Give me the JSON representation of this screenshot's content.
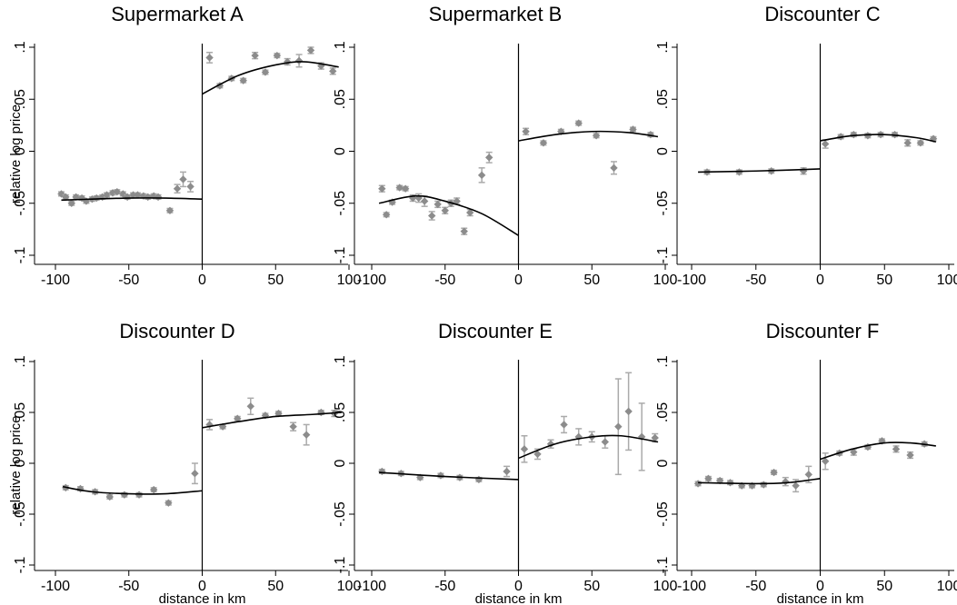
{
  "chart_data": [
    {
      "type": "scatter",
      "title": "Supermarket A",
      "ylabel": "relative log price",
      "xlabel": "",
      "xlim": [
        -100,
        100
      ],
      "ylim": [
        -0.1,
        0.1
      ],
      "xticks": [
        "-100",
        "-50",
        "0",
        "50",
        "100"
      ],
      "yticks": [
        "-.1",
        "-.05",
        "0",
        ".05",
        ".1"
      ],
      "points": [
        {
          "x": -96,
          "y": -0.041,
          "e": 0.002
        },
        {
          "x": -93,
          "y": -0.044,
          "e": 0.002
        },
        {
          "x": -89,
          "y": -0.05,
          "e": 0.002
        },
        {
          "x": -86,
          "y": -0.044,
          "e": 0.002
        },
        {
          "x": -82,
          "y": -0.045,
          "e": 0.002
        },
        {
          "x": -79,
          "y": -0.048,
          "e": 0.002
        },
        {
          "x": -75,
          "y": -0.046,
          "e": 0.002
        },
        {
          "x": -72,
          "y": -0.045,
          "e": 0.002
        },
        {
          "x": -68,
          "y": -0.044,
          "e": 0.002
        },
        {
          "x": -65,
          "y": -0.042,
          "e": 0.002
        },
        {
          "x": -61,
          "y": -0.04,
          "e": 0.002
        },
        {
          "x": -58,
          "y": -0.039,
          "e": 0.002
        },
        {
          "x": -54,
          "y": -0.041,
          "e": 0.002
        },
        {
          "x": -51,
          "y": -0.044,
          "e": 0.002
        },
        {
          "x": -47,
          "y": -0.042,
          "e": 0.002
        },
        {
          "x": -44,
          "y": -0.042,
          "e": 0.002
        },
        {
          "x": -40,
          "y": -0.043,
          "e": 0.002
        },
        {
          "x": -37,
          "y": -0.044,
          "e": 0.002
        },
        {
          "x": -33,
          "y": -0.043,
          "e": 0.002
        },
        {
          "x": -30,
          "y": -0.044,
          "e": 0.002
        },
        {
          "x": -22,
          "y": -0.057,
          "e": 0.002
        },
        {
          "x": -17,
          "y": -0.036,
          "e": 0.004
        },
        {
          "x": -13,
          "y": -0.027,
          "e": 0.007
        },
        {
          "x": -8,
          "y": -0.034,
          "e": 0.005
        },
        {
          "x": 5,
          "y": 0.09,
          "e": 0.005
        },
        {
          "x": 12,
          "y": 0.063,
          "e": 0.002
        },
        {
          "x": 20,
          "y": 0.07,
          "e": 0.002
        },
        {
          "x": 28,
          "y": 0.068,
          "e": 0.002
        },
        {
          "x": 36,
          "y": 0.092,
          "e": 0.003
        },
        {
          "x": 43,
          "y": 0.076,
          "e": 0.002
        },
        {
          "x": 51,
          "y": 0.092,
          "e": 0.002
        },
        {
          "x": 58,
          "y": 0.086,
          "e": 0.003
        },
        {
          "x": 66,
          "y": 0.087,
          "e": 0.006
        },
        {
          "x": 74,
          "y": 0.097,
          "e": 0.003
        },
        {
          "x": 81,
          "y": 0.082,
          "e": 0.003
        },
        {
          "x": 89,
          "y": 0.077,
          "e": 0.003
        }
      ],
      "fit_left": [
        [
          -96,
          -0.047
        ],
        [
          -75,
          -0.046
        ],
        [
          -50,
          -0.045
        ],
        [
          -25,
          -0.045
        ],
        [
          0,
          -0.046
        ]
      ],
      "fit_right": [
        [
          0,
          0.055
        ],
        [
          25,
          0.073
        ],
        [
          50,
          0.083
        ],
        [
          70,
          0.086
        ],
        [
          93,
          0.081
        ]
      ]
    },
    {
      "type": "scatter",
      "title": "Supermarket B",
      "ylabel": "",
      "xlabel": "",
      "xlim": [
        -100,
        100
      ],
      "ylim": [
        -0.1,
        0.1
      ],
      "xticks": [
        "-100",
        "-50",
        "0",
        "50",
        "100"
      ],
      "yticks": [
        "-.1",
        "-.05",
        "0",
        ".05",
        ".1"
      ],
      "points": [
        {
          "x": -93,
          "y": -0.036,
          "e": 0.003
        },
        {
          "x": -90,
          "y": -0.061,
          "e": 0.002
        },
        {
          "x": -86,
          "y": -0.049,
          "e": 0.002
        },
        {
          "x": -81,
          "y": -0.035,
          "e": 0.002
        },
        {
          "x": -77,
          "y": -0.036,
          "e": 0.002
        },
        {
          "x": -72,
          "y": -0.045,
          "e": 0.003
        },
        {
          "x": -68,
          "y": -0.045,
          "e": 0.004
        },
        {
          "x": -64,
          "y": -0.048,
          "e": 0.005
        },
        {
          "x": -59,
          "y": -0.062,
          "e": 0.004
        },
        {
          "x": -55,
          "y": -0.051,
          "e": 0.003
        },
        {
          "x": -50,
          "y": -0.057,
          "e": 0.003
        },
        {
          "x": -46,
          "y": -0.05,
          "e": 0.003
        },
        {
          "x": -42,
          "y": -0.048,
          "e": 0.003
        },
        {
          "x": -37,
          "y": -0.077,
          "e": 0.003
        },
        {
          "x": -33,
          "y": -0.059,
          "e": 0.003
        },
        {
          "x": -25,
          "y": -0.023,
          "e": 0.007
        },
        {
          "x": -20,
          "y": -0.006,
          "e": 0.005
        },
        {
          "x": 5,
          "y": 0.019,
          "e": 0.003
        },
        {
          "x": 17,
          "y": 0.008,
          "e": 0.002
        },
        {
          "x": 29,
          "y": 0.019,
          "e": 0.002
        },
        {
          "x": 41,
          "y": 0.027,
          "e": 0.002
        },
        {
          "x": 53,
          "y": 0.015,
          "e": 0.002
        },
        {
          "x": 65,
          "y": -0.016,
          "e": 0.006
        },
        {
          "x": 78,
          "y": 0.021,
          "e": 0.002
        },
        {
          "x": 90,
          "y": 0.016,
          "e": 0.002
        }
      ],
      "fit_left": [
        [
          -95,
          -0.05
        ],
        [
          -70,
          -0.043
        ],
        [
          -50,
          -0.048
        ],
        [
          -25,
          -0.06
        ],
        [
          0,
          -0.081
        ]
      ],
      "fit_right": [
        [
          0,
          0.01
        ],
        [
          25,
          0.016
        ],
        [
          50,
          0.019
        ],
        [
          75,
          0.018
        ],
        [
          95,
          0.014
        ]
      ]
    },
    {
      "type": "scatter",
      "title": "Discounter C",
      "ylabel": "",
      "xlabel": "",
      "xlim": [
        -100,
        100
      ],
      "ylim": [
        -0.1,
        0.1
      ],
      "xticks": [
        "-100",
        "-50",
        "0",
        "50",
        "100"
      ],
      "yticks": [
        "-.1",
        "-.05",
        "0",
        ".05",
        ".1"
      ],
      "points": [
        {
          "x": -88,
          "y": -0.02,
          "e": 0.002
        },
        {
          "x": -63,
          "y": -0.02,
          "e": 0.002
        },
        {
          "x": -38,
          "y": -0.019,
          "e": 0.002
        },
        {
          "x": -13,
          "y": -0.019,
          "e": 0.003
        },
        {
          "x": 4,
          "y": 0.007,
          "e": 0.004
        },
        {
          "x": 16,
          "y": 0.014,
          "e": 0.002
        },
        {
          "x": 26,
          "y": 0.016,
          "e": 0.002
        },
        {
          "x": 37,
          "y": 0.015,
          "e": 0.002
        },
        {
          "x": 47,
          "y": 0.016,
          "e": 0.002
        },
        {
          "x": 58,
          "y": 0.016,
          "e": 0.002
        },
        {
          "x": 68,
          "y": 0.008,
          "e": 0.003
        },
        {
          "x": 78,
          "y": 0.008,
          "e": 0.002
        },
        {
          "x": 88,
          "y": 0.012,
          "e": 0.002
        }
      ],
      "fit_left": [
        [
          -95,
          -0.02
        ],
        [
          -50,
          -0.019
        ],
        [
          0,
          -0.017
        ]
      ],
      "fit_right": [
        [
          0,
          0.01
        ],
        [
          25,
          0.015
        ],
        [
          50,
          0.016
        ],
        [
          75,
          0.013
        ],
        [
          90,
          0.009
        ]
      ]
    },
    {
      "type": "scatter",
      "title": "Discounter D",
      "ylabel": "relative log price",
      "xlabel": "distance in km",
      "xlim": [
        -100,
        100
      ],
      "ylim": [
        -0.1,
        0.1
      ],
      "xticks": [
        "-100",
        "-50",
        "0",
        "50",
        "100"
      ],
      "yticks": [
        "-.1",
        "-.05",
        "0",
        ".05",
        ".1"
      ],
      "points": [
        {
          "x": -93,
          "y": -0.024,
          "e": 0.002
        },
        {
          "x": -83,
          "y": -0.025,
          "e": 0.002
        },
        {
          "x": -73,
          "y": -0.028,
          "e": 0.002
        },
        {
          "x": -63,
          "y": -0.033,
          "e": 0.002
        },
        {
          "x": -53,
          "y": -0.031,
          "e": 0.002
        },
        {
          "x": -43,
          "y": -0.031,
          "e": 0.002
        },
        {
          "x": -33,
          "y": -0.026,
          "e": 0.002
        },
        {
          "x": -23,
          "y": -0.039,
          "e": 0.002
        },
        {
          "x": -5,
          "y": -0.01,
          "e": 0.01
        },
        {
          "x": 5,
          "y": 0.038,
          "e": 0.005
        },
        {
          "x": 14,
          "y": 0.036,
          "e": 0.002
        },
        {
          "x": 24,
          "y": 0.044,
          "e": 0.002
        },
        {
          "x": 33,
          "y": 0.056,
          "e": 0.008
        },
        {
          "x": 43,
          "y": 0.047,
          "e": 0.002
        },
        {
          "x": 52,
          "y": 0.049,
          "e": 0.002
        },
        {
          "x": 62,
          "y": 0.036,
          "e": 0.004
        },
        {
          "x": 71,
          "y": 0.028,
          "e": 0.01
        },
        {
          "x": 81,
          "y": 0.05,
          "e": 0.002
        },
        {
          "x": 90,
          "y": 0.049,
          "e": 0.003
        }
      ],
      "fit_left": [
        [
          -95,
          -0.023
        ],
        [
          -75,
          -0.028
        ],
        [
          -50,
          -0.03
        ],
        [
          -25,
          -0.03
        ],
        [
          0,
          -0.027
        ]
      ],
      "fit_right": [
        [
          0,
          0.035
        ],
        [
          25,
          0.041
        ],
        [
          50,
          0.046
        ],
        [
          75,
          0.048
        ],
        [
          95,
          0.05
        ]
      ]
    },
    {
      "type": "scatter",
      "title": "Discounter E",
      "ylabel": "",
      "xlabel": "distance in km",
      "xlim": [
        -100,
        100
      ],
      "ylim": [
        -0.1,
        0.1
      ],
      "xticks": [
        "-100",
        "-50",
        "0",
        "50",
        "100"
      ],
      "yticks": [
        "-.1",
        "-.05",
        "0",
        ".05",
        ".1"
      ],
      "points": [
        {
          "x": -93,
          "y": -0.008,
          "e": 0.002
        },
        {
          "x": -80,
          "y": -0.01,
          "e": 0.002
        },
        {
          "x": -67,
          "y": -0.014,
          "e": 0.002
        },
        {
          "x": -53,
          "y": -0.012,
          "e": 0.002
        },
        {
          "x": -40,
          "y": -0.014,
          "e": 0.002
        },
        {
          "x": -27,
          "y": -0.016,
          "e": 0.002
        },
        {
          "x": -8,
          "y": -0.008,
          "e": 0.005
        },
        {
          "x": 4,
          "y": 0.014,
          "e": 0.013
        },
        {
          "x": 13,
          "y": 0.009,
          "e": 0.005
        },
        {
          "x": 22,
          "y": 0.019,
          "e": 0.004
        },
        {
          "x": 31,
          "y": 0.038,
          "e": 0.008
        },
        {
          "x": 41,
          "y": 0.026,
          "e": 0.008
        },
        {
          "x": 50,
          "y": 0.026,
          "e": 0.005
        },
        {
          "x": 59,
          "y": 0.021,
          "e": 0.006
        },
        {
          "x": 68,
          "y": 0.036,
          "e": 0.047
        },
        {
          "x": 75,
          "y": 0.051,
          "e": 0.038
        },
        {
          "x": 84,
          "y": 0.026,
          "e": 0.033
        },
        {
          "x": 93,
          "y": 0.025,
          "e": 0.004
        }
      ],
      "fit_left": [
        [
          -95,
          -0.009
        ],
        [
          -50,
          -0.013
        ],
        [
          0,
          -0.016
        ]
      ],
      "fit_right": [
        [
          0,
          0.005
        ],
        [
          25,
          0.019
        ],
        [
          50,
          0.026
        ],
        [
          70,
          0.027
        ],
        [
          95,
          0.021
        ]
      ]
    },
    {
      "type": "scatter",
      "title": "Discounter F",
      "ylabel": "",
      "xlabel": "distance in km",
      "xlim": [
        -100,
        100
      ],
      "ylim": [
        -0.1,
        0.1
      ],
      "xticks": [
        "-100",
        "-50",
        "0",
        "50",
        "100"
      ],
      "yticks": [
        "-.1",
        "-.05",
        "0",
        ".05",
        ".1"
      ],
      "points": [
        {
          "x": -95,
          "y": -0.02,
          "e": 0.002
        },
        {
          "x": -87,
          "y": -0.015,
          "e": 0.002
        },
        {
          "x": -78,
          "y": -0.017,
          "e": 0.002
        },
        {
          "x": -70,
          "y": -0.019,
          "e": 0.002
        },
        {
          "x": -61,
          "y": -0.022,
          "e": 0.002
        },
        {
          "x": -53,
          "y": -0.022,
          "e": 0.002
        },
        {
          "x": -44,
          "y": -0.021,
          "e": 0.002
        },
        {
          "x": -36,
          "y": -0.009,
          "e": 0.002
        },
        {
          "x": -27,
          "y": -0.018,
          "e": 0.004
        },
        {
          "x": -19,
          "y": -0.022,
          "e": 0.006
        },
        {
          "x": -9,
          "y": -0.011,
          "e": 0.008
        },
        {
          "x": 4,
          "y": 0.002,
          "e": 0.008
        },
        {
          "x": 15,
          "y": 0.01,
          "e": 0.002
        },
        {
          "x": 26,
          "y": 0.011,
          "e": 0.003
        },
        {
          "x": 37,
          "y": 0.016,
          "e": 0.002
        },
        {
          "x": 48,
          "y": 0.022,
          "e": 0.002
        },
        {
          "x": 59,
          "y": 0.014,
          "e": 0.003
        },
        {
          "x": 70,
          "y": 0.008,
          "e": 0.003
        },
        {
          "x": 81,
          "y": 0.019,
          "e": 0.002
        }
      ],
      "fit_left": [
        [
          -95,
          -0.019
        ],
        [
          -50,
          -0.02
        ],
        [
          -25,
          -0.019
        ],
        [
          0,
          -0.015
        ]
      ],
      "fit_right": [
        [
          0,
          0.004
        ],
        [
          25,
          0.014
        ],
        [
          50,
          0.02
        ],
        [
          70,
          0.02
        ],
        [
          90,
          0.017
        ]
      ]
    }
  ]
}
